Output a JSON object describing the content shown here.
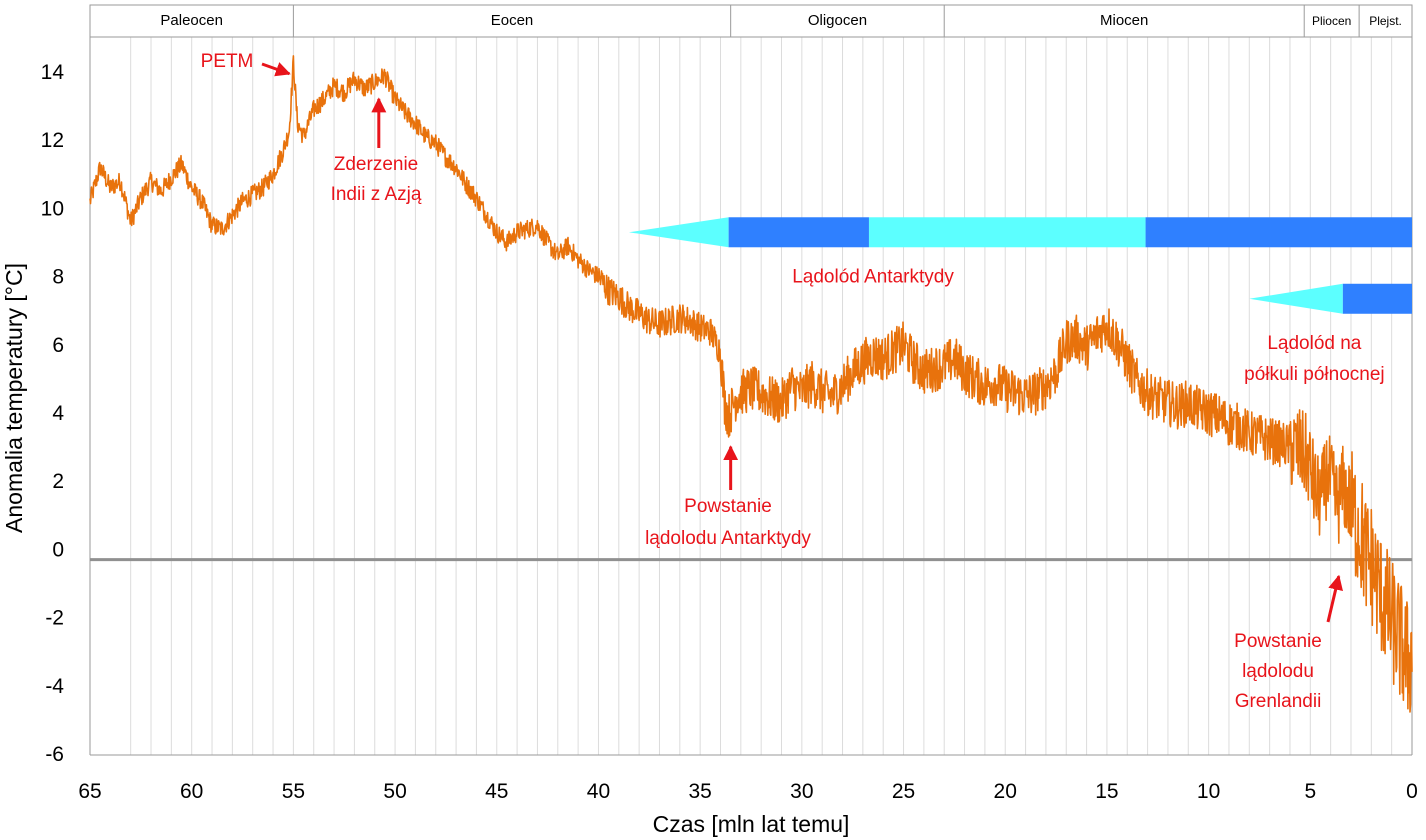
{
  "chart_data": {
    "type": "line",
    "xlabel": "Czas [mln lat temu]",
    "ylabel": "Anomalia temperatury [°C]",
    "xlim": [
      65,
      0
    ],
    "ylim": [
      -6,
      15
    ],
    "x_reversed": true,
    "x_ticks": [
      "65",
      "60",
      "55",
      "50",
      "45",
      "40",
      "35",
      "30",
      "25",
      "20",
      "15",
      "10",
      "5",
      "0"
    ],
    "y_ticks": [
      "14",
      "12",
      "10",
      "8",
      "6",
      "4",
      "2",
      "0",
      "-2",
      "-4",
      "-6"
    ],
    "grid": "vertical",
    "zero_line": -0.3,
    "colors": {
      "series": "#E8720C",
      "annotation": "#E8141B",
      "ice_full": "#2F80FF",
      "ice_partial": "#5CFFFF",
      "zero_line": "#909090",
      "grid": "#DCDCDC"
    },
    "epochs": [
      {
        "name": "Paleocen",
        "start": 65,
        "end": 55
      },
      {
        "name": "Eocen",
        "start": 55,
        "end": 33.5
      },
      {
        "name": "Oligocen",
        "start": 33.5,
        "end": 23
      },
      {
        "name": "Miocen",
        "start": 23,
        "end": 5.3
      },
      {
        "name": "Pliocen",
        "start": 5.3,
        "end": 2.6
      },
      {
        "name": "Plejst.",
        "start": 2.6,
        "end": 0
      }
    ],
    "series": [
      {
        "x": [
          65,
          64.5,
          64,
          63.5,
          63,
          62.5,
          62,
          61.5,
          61,
          60.5,
          60,
          59.5,
          59,
          58.5,
          58,
          57.5,
          57,
          56.5,
          56,
          55.5,
          55.2,
          55,
          54.8,
          54.5,
          54,
          53.5,
          53,
          52.5,
          52,
          51.5,
          51,
          50.5,
          50,
          49.5,
          49,
          48.5,
          48,
          47.5,
          47,
          46.5,
          46,
          45.5,
          45,
          44.5,
          44,
          43.5,
          43,
          42.5,
          42,
          41.5,
          41,
          40.5,
          40,
          39.5,
          39,
          38.5,
          38,
          37.5,
          37,
          36.5,
          36,
          35.5,
          35,
          34.5,
          34,
          33.8,
          33.6,
          33.4,
          33.2,
          33,
          32.5,
          32,
          31.5,
          31,
          30.5,
          30,
          29.5,
          29,
          28.5,
          28,
          27.5,
          27,
          26.5,
          26,
          25.5,
          25,
          24.5,
          24,
          23.5,
          23,
          22.5,
          22,
          21.5,
          21,
          20.5,
          20,
          19.5,
          19,
          18.5,
          18,
          17.5,
          17,
          16.5,
          16,
          15.5,
          15,
          14.5,
          14,
          13.5,
          13,
          12.5,
          12,
          11.5,
          11,
          10.5,
          10,
          9.5,
          9,
          8.5,
          8,
          7.5,
          7,
          6.5,
          6,
          5.5,
          5.2,
          5,
          4.8,
          4.6,
          4.4,
          4.2,
          4,
          3.8,
          3.6,
          3.4,
          3.2,
          3,
          2.8,
          2.6,
          2.4,
          2.2,
          2,
          1.8,
          1.6,
          1.4,
          1.2,
          1,
          0.8,
          0.6,
          0.4,
          0.2,
          0
        ],
        "y": [
          10.2,
          11.2,
          10.6,
          10.8,
          9.6,
          10.3,
          10.8,
          10.5,
          10.9,
          11.3,
          10.6,
          10.2,
          9.5,
          9.4,
          9.8,
          10.2,
          10.4,
          10.6,
          11.0,
          11.7,
          12.3,
          14.3,
          12.5,
          12.1,
          12.9,
          13.2,
          13.6,
          13.4,
          13.8,
          13.5,
          13.7,
          13.9,
          13.2,
          12.8,
          12.5,
          12.1,
          11.9,
          11.5,
          11.2,
          10.7,
          10.3,
          9.8,
          9.3,
          9.0,
          9.3,
          9.4,
          9.5,
          9.0,
          8.6,
          8.9,
          8.5,
          8.2,
          8.0,
          7.6,
          7.4,
          7.1,
          6.9,
          6.7,
          6.6,
          6.7,
          6.8,
          6.7,
          6.5,
          6.4,
          5.8,
          4.3,
          3.9,
          4.2,
          4.5,
          4.6,
          4.7,
          4.6,
          4.4,
          4.3,
          4.8,
          4.6,
          4.9,
          4.6,
          4.5,
          4.8,
          5.2,
          5.5,
          5.7,
          5.6,
          5.8,
          6.0,
          5.5,
          5.2,
          5.3,
          5.4,
          5.6,
          5.2,
          5.0,
          4.8,
          4.9,
          4.7,
          4.6,
          4.5,
          4.6,
          4.8,
          5.2,
          6.1,
          6.2,
          5.9,
          6.3,
          6.6,
          6.1,
          5.5,
          4.9,
          4.6,
          4.4,
          4.3,
          4.2,
          4.3,
          4.1,
          4.0,
          3.9,
          3.7,
          3.6,
          3.4,
          3.3,
          3.2,
          3.1,
          3.0,
          2.9,
          2.7,
          2.4,
          1.8,
          1.5,
          1.6,
          2.2,
          2.0,
          1.5,
          1.4,
          1.8,
          1.6,
          1.2,
          0.9,
          0.6,
          0.2,
          -0.3,
          -0.4,
          -0.8,
          -1.2,
          -1.5,
          -1.8,
          -2.1,
          -2.4,
          -2.7,
          -3.0,
          -3.3,
          -3.1
        ]
      }
    ],
    "ice_sheets": [
      {
        "label": "Lądolód Antarktydy",
        "label_anchor": 26.5,
        "y": 9.3,
        "taper_start": 38.5,
        "segments": [
          {
            "from": 33.6,
            "to": 26.7,
            "state": "full"
          },
          {
            "from": 26.7,
            "to": 13.1,
            "state": "partial"
          },
          {
            "from": 13.1,
            "to": 0,
            "state": "full"
          }
        ]
      },
      {
        "label": "Lądolód na",
        "label2": "półkuli północnej",
        "label_anchor": 4.8,
        "y": 7.35,
        "taper_start": 8.0,
        "segments": [
          {
            "from": 3.4,
            "to": 0,
            "state": "full"
          }
        ]
      }
    ],
    "annotations": [
      {
        "lines": [
          "PETM"
        ],
        "x": 55.0,
        "y": 14.3
      },
      {
        "lines": [
          "Zderzenie",
          "Indii z Azją"
        ],
        "x": 50.8,
        "y": 13.3
      },
      {
        "lines": [
          "Powstanie",
          "lądolodu Antarktydy"
        ],
        "x": 33.5,
        "y": 3.1
      },
      {
        "lines": [
          "Powstanie",
          "lądolodu",
          "Grenlandii"
        ],
        "x": 3.6,
        "y": -0.7
      }
    ]
  }
}
